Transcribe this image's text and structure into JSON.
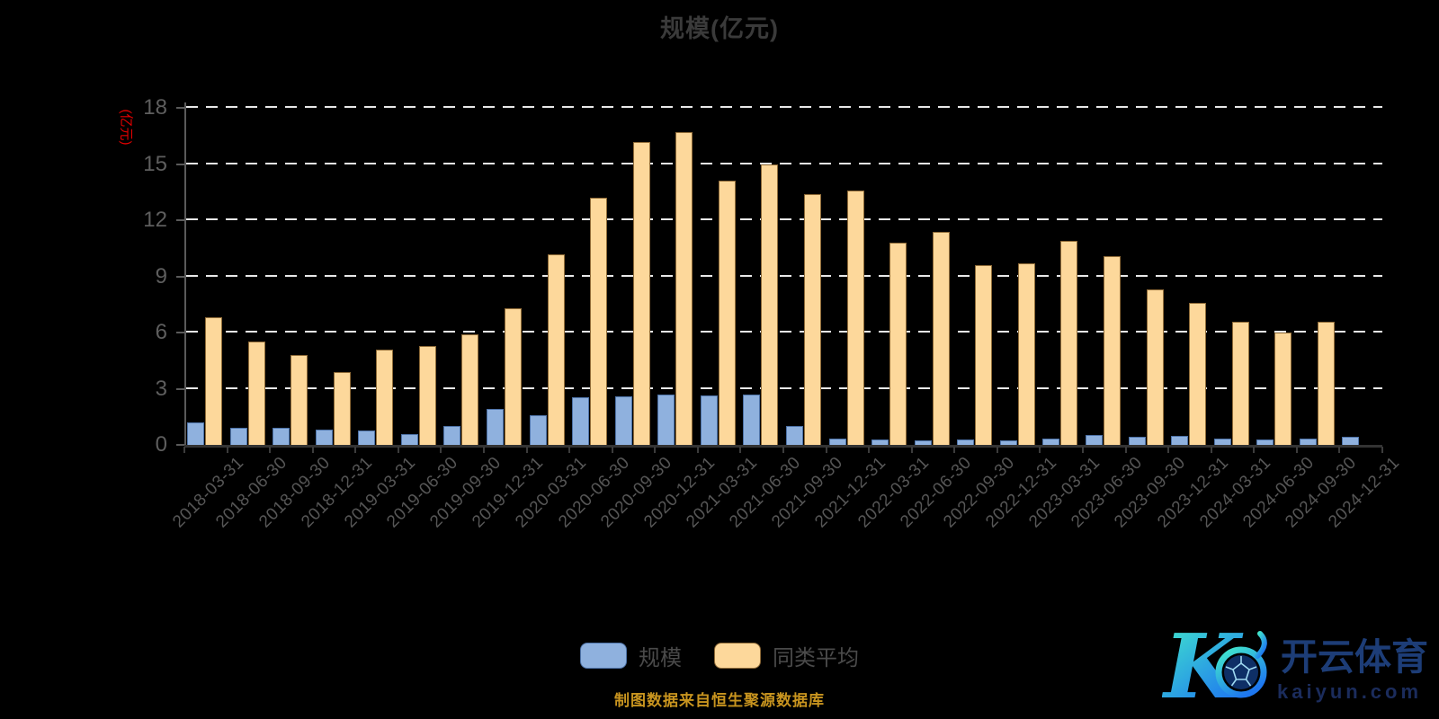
{
  "title": "规模(亿元)",
  "y_axis_name": "(亿元)",
  "footer_source": "制图数据来自恒生聚源数据库",
  "logo": {
    "mark": "K",
    "brand": "开云体育",
    "domain": "kaiyun.com"
  },
  "colors": {
    "background": "#000000",
    "title_text": "#3a3a3a",
    "axis_name_red": "#e60000",
    "gridline": "#e8e8e8",
    "axis_line": "#5a5a5a",
    "tick_text": "#5e5e5e",
    "bar_scale_fill": "#8fb1de",
    "bar_scale_border": "#4e73a8",
    "bar_peer_fill": "#fdd89b",
    "bar_peer_border": "#8f6b38",
    "footer_gold": "#c8941f",
    "logo_gradient_start": "#43ecca",
    "logo_gradient_end": "#1e77f0",
    "logo_navy": "#1d3d77"
  },
  "chart_data": {
    "type": "bar",
    "title": "规模(亿元)",
    "ylabel": "(亿元)",
    "ylim": [
      0,
      18
    ],
    "yticks": [
      0,
      3,
      6,
      9,
      12,
      15,
      18
    ],
    "grid": "horizontal-dashed-white",
    "legend_position": "bottom-center",
    "categories": [
      "2018-03-31",
      "2018-06-30",
      "2018-09-30",
      "2018-12-31",
      "2019-03-31",
      "2019-06-30",
      "2019-09-30",
      "2019-12-31",
      "2020-03-31",
      "2020-06-30",
      "2020-09-30",
      "2020-12-31",
      "2021-03-31",
      "2021-06-30",
      "2021-09-30",
      "2021-12-31",
      "2022-03-31",
      "2022-06-30",
      "2022-09-30",
      "2022-12-31",
      "2023-03-31",
      "2023-06-30",
      "2023-09-30",
      "2023-12-31",
      "2024-03-31",
      "2024-06-30",
      "2024-09-30",
      "2024-12-31"
    ],
    "series": [
      {
        "name": "规模",
        "color": "#8fb1de",
        "values": [
          1.2,
          0.9,
          0.9,
          0.8,
          0.75,
          0.6,
          1.0,
          1.9,
          1.6,
          2.55,
          2.6,
          2.7,
          2.65,
          2.7,
          1.0,
          0.35,
          0.3,
          0.25,
          0.3,
          0.25,
          0.35,
          0.55,
          0.45,
          0.5,
          0.35,
          0.3,
          0.35,
          0.45
        ]
      },
      {
        "name": "同类平均",
        "color": "#fdd89b",
        "values": [
          6.8,
          5.5,
          4.8,
          3.9,
          5.1,
          5.3,
          5.9,
          7.3,
          10.2,
          13.2,
          16.2,
          16.7,
          14.1,
          15.0,
          13.4,
          13.6,
          10.8,
          11.4,
          9.6,
          9.7,
          10.9,
          10.1,
          8.3,
          7.6,
          6.6,
          6.0,
          6.6,
          0
        ]
      }
    ]
  }
}
